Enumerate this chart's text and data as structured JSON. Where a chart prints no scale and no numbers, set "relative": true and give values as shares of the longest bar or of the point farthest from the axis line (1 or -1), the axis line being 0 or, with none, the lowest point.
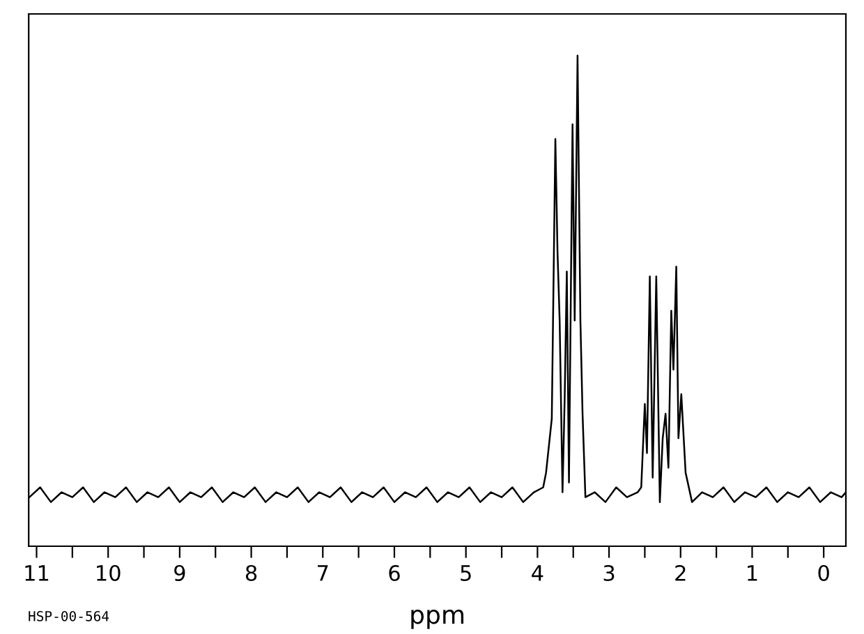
{
  "chart_data": {
    "type": "line",
    "relative": true,
    "xlabel": "ppm",
    "annotations": [
      "HSP-00-564"
    ],
    "grid": false,
    "legend": false,
    "tick_labels": "x",
    "marker": "none",
    "line_style": "solid",
    "x": [
      11.1,
      10.95,
      10.8,
      10.65,
      10.5,
      10.35,
      10.2,
      10.05,
      9.9,
      9.75,
      9.6,
      9.45,
      9.3,
      9.15,
      9.0,
      8.85,
      8.7,
      8.55,
      8.4,
      8.25,
      8.1,
      7.95,
      7.8,
      7.65,
      7.5,
      7.35,
      7.2,
      7.05,
      6.9,
      6.75,
      6.6,
      6.45,
      6.3,
      6.15,
      6.0,
      5.85,
      5.7,
      5.55,
      5.4,
      5.25,
      5.1,
      4.95,
      4.8,
      4.65,
      4.5,
      4.35,
      4.2,
      4.05,
      3.92,
      3.88,
      3.8,
      3.75,
      3.72,
      3.69,
      3.65,
      3.62,
      3.59,
      3.56,
      3.51,
      3.48,
      3.44,
      3.4,
      3.37,
      3.33,
      3.2,
      3.05,
      2.9,
      2.75,
      2.6,
      2.55,
      2.5,
      2.47,
      2.43,
      2.39,
      2.34,
      2.29,
      2.25,
      2.21,
      2.17,
      2.13,
      2.1,
      2.06,
      2.03,
      1.99,
      1.93,
      1.84,
      1.7,
      1.55,
      1.4,
      1.25,
      1.1,
      0.95,
      0.8,
      0.65,
      0.5,
      0.35,
      0.2,
      0.05,
      -0.1,
      -0.25,
      -0.31
    ],
    "series": [
      {
        "color": "#000000",
        "values": [
          0.1,
          0.12,
          0.09,
          0.11,
          0.1,
          0.12,
          0.09,
          0.11,
          0.1,
          0.12,
          0.09,
          0.11,
          0.1,
          0.12,
          0.09,
          0.11,
          0.1,
          0.12,
          0.09,
          0.11,
          0.1,
          0.12,
          0.09,
          0.11,
          0.1,
          0.12,
          0.09,
          0.11,
          0.1,
          0.12,
          0.09,
          0.11,
          0.1,
          0.12,
          0.09,
          0.11,
          0.1,
          0.12,
          0.09,
          0.11,
          0.1,
          0.12,
          0.09,
          0.11,
          0.1,
          0.12,
          0.09,
          0.11,
          0.12,
          0.15,
          0.26,
          0.83,
          0.6,
          0.46,
          0.11,
          0.3,
          0.56,
          0.13,
          0.86,
          0.46,
          1.0,
          0.46,
          0.27,
          0.1,
          0.11,
          0.09,
          0.12,
          0.1,
          0.11,
          0.12,
          0.29,
          0.19,
          0.55,
          0.14,
          0.55,
          0.09,
          0.22,
          0.27,
          0.16,
          0.48,
          0.36,
          0.57,
          0.22,
          0.31,
          0.15,
          0.09,
          0.11,
          0.1,
          0.12,
          0.09,
          0.11,
          0.1,
          0.12,
          0.09,
          0.11,
          0.1,
          0.12,
          0.09,
          0.11,
          0.1,
          0.11
        ]
      }
    ],
    "xlim": [
      11.11,
      -0.31
    ],
    "xticks": [
      11,
      {
        "value": 10.5,
        "label": null
      },
      10,
      {
        "value": 9.5,
        "label": null
      },
      9,
      {
        "value": 8.5,
        "label": null
      },
      8,
      {
        "value": 7.5,
        "label": null
      },
      7,
      {
        "value": 6.5,
        "label": null
      },
      6,
      {
        "value": 5.5,
        "label": null
      },
      5,
      {
        "value": 4.5,
        "label": null
      },
      4,
      {
        "value": 3.5,
        "label": null
      },
      3,
      {
        "value": 2.5,
        "label": null
      },
      2,
      {
        "value": 1.5,
        "label": null
      },
      1,
      {
        "value": 0.5,
        "label": null
      },
      0
    ]
  }
}
